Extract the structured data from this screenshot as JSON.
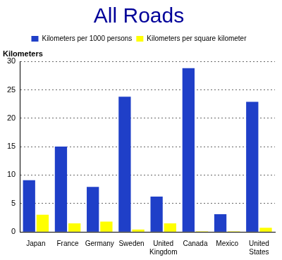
{
  "chart_data": {
    "type": "bar",
    "title": "All Roads",
    "y_label": "Kilometers",
    "categories": [
      "Japan",
      "France",
      "Germany",
      "Sweden",
      "United Kingdom",
      "Canada",
      "Mexico",
      "United States"
    ],
    "series": [
      {
        "name": "Kilometers per 1000 persons",
        "color": "#1f3fc8",
        "values": [
          9.1,
          15.0,
          7.9,
          23.8,
          6.2,
          28.8,
          3.1,
          22.9
        ]
      },
      {
        "name": "Kilometers per square kilometer",
        "color": "#ffff00",
        "values": [
          3.0,
          1.5,
          1.8,
          0.4,
          1.5,
          0.1,
          0.1,
          0.7
        ]
      }
    ],
    "ylim": [
      0,
      30
    ],
    "yticks": [
      0,
      5,
      10,
      15,
      20,
      25,
      30
    ],
    "grid": true,
    "legend": "top"
  }
}
